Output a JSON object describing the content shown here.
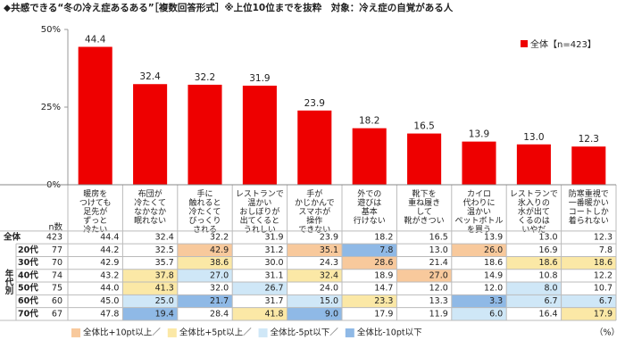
{
  "chart_data": {
    "type": "bar",
    "title": "◆共感できる“冬の冷え症あるある”［複数回答形式］※上位10位までを抜粋　対象：冷え症の自覚がある人",
    "categories": [
      "暖房を\nつけても\n足先が\nずっと\n冷たい",
      "布団が\n冷たくて\nなかなか\n眠れない",
      "手に\n触れると\n冷たくて\nびっくり\nされる",
      "レストランで\n温かい\nおしぼりが\n出てくると\nうれしい",
      "手が\nかじかんで\nスマホが\n操作\nできない",
      "外での\n遊びは\n基本\n行けない",
      "靴下を\n重ね履き\nして\n靴がきつい",
      "カイロ\n代わりに\n温かい\nペットボトル\nを買う",
      "レストランで\n氷入りの\n水が出て\nくるのは\nいやだ",
      "防寒重視で\n一番暖かい\nコートしか\n着られない"
    ],
    "series": [
      {
        "name": "全体【n=423】",
        "color": "#ee0000",
        "values": [
          44.4,
          32.4,
          32.2,
          31.9,
          23.9,
          18.2,
          16.5,
          13.9,
          13.0,
          12.3
        ],
        "value_labels": [
          "44.4",
          "32.4",
          "32.2",
          "31.9",
          "23.9",
          "18.2",
          "16.5",
          "13.9",
          "13.0",
          "12.3"
        ]
      }
    ],
    "ylim": [
      0,
      50
    ],
    "yticks": [
      {
        "value": 0,
        "label": "0%"
      },
      {
        "value": 25,
        "label": "25%"
      },
      {
        "value": 50,
        "label": "50%"
      }
    ],
    "legend": "upper-right"
  },
  "table": {
    "n_header": "n数",
    "group_label": "年代別",
    "unit": "（%）",
    "highlight_legend": [
      {
        "label": "全体比+10pt以上／",
        "color": "#f8c99c"
      },
      {
        "label": "全体比+5pt以上／",
        "color": "#fbe8a6"
      },
      {
        "label": "全体比-5pt以下／",
        "color": "#cfe7f7"
      },
      {
        "label": "全体比-10pt以下",
        "color": "#8fb9e6"
      }
    ],
    "rows": [
      {
        "label": "全体",
        "n": 423,
        "values": [
          "44.4",
          "32.4",
          "32.2",
          "31.9",
          "23.9",
          "18.2",
          "16.5",
          "13.9",
          "13.0",
          "12.3"
        ],
        "highlight": [
          null,
          null,
          null,
          null,
          null,
          null,
          null,
          null,
          null,
          null
        ]
      },
      {
        "label": "20代",
        "n": 77,
        "values": [
          "44.2",
          "32.5",
          "42.9",
          "31.2",
          "35.1",
          "7.8",
          "13.0",
          "26.0",
          "16.9",
          "7.8"
        ],
        "highlight": [
          null,
          null,
          "#f8c99c",
          null,
          "#f8c99c",
          "#8fb9e6",
          null,
          "#f8c99c",
          null,
          null
        ]
      },
      {
        "label": "30代",
        "n": 70,
        "values": [
          "42.9",
          "35.7",
          "38.6",
          "30.0",
          "24.3",
          "28.6",
          "21.4",
          "18.6",
          "18.6",
          "18.6"
        ],
        "highlight": [
          null,
          null,
          "#fbe8a6",
          null,
          null,
          "#f8c99c",
          null,
          null,
          "#fbe8a6",
          "#fbe8a6"
        ]
      },
      {
        "label": "40代",
        "n": 74,
        "values": [
          "43.2",
          "37.8",
          "27.0",
          "31.1",
          "32.4",
          "18.9",
          "27.0",
          "14.9",
          "10.8",
          "12.2"
        ],
        "highlight": [
          null,
          "#fbe8a6",
          "#cfe7f7",
          null,
          "#fbe8a6",
          null,
          "#f8c99c",
          null,
          null,
          null
        ]
      },
      {
        "label": "50代",
        "n": 75,
        "values": [
          "44.0",
          "41.3",
          "32.0",
          "26.7",
          "24.0",
          "14.7",
          "12.0",
          "12.0",
          "8.0",
          "10.7"
        ],
        "highlight": [
          null,
          "#fbe8a6",
          null,
          "#cfe7f7",
          null,
          null,
          null,
          null,
          "#cfe7f7",
          null
        ]
      },
      {
        "label": "60代",
        "n": 60,
        "values": [
          "45.0",
          "25.0",
          "21.7",
          "31.7",
          "15.0",
          "23.3",
          "13.3",
          "3.3",
          "6.7",
          "6.7"
        ],
        "highlight": [
          null,
          "#cfe7f7",
          "#8fb9e6",
          null,
          "#cfe7f7",
          "#fbe8a6",
          null,
          "#8fb9e6",
          "#cfe7f7",
          "#cfe7f7"
        ]
      },
      {
        "label": "70代",
        "n": 67,
        "values": [
          "47.8",
          "19.4",
          "28.4",
          "41.8",
          "9.0",
          "17.9",
          "11.9",
          "6.0",
          "16.4",
          "17.9"
        ],
        "highlight": [
          null,
          "#8fb9e6",
          null,
          "#fbe8a6",
          "#8fb9e6",
          null,
          null,
          "#cfe7f7",
          null,
          "#fbe8a6"
        ]
      }
    ]
  }
}
